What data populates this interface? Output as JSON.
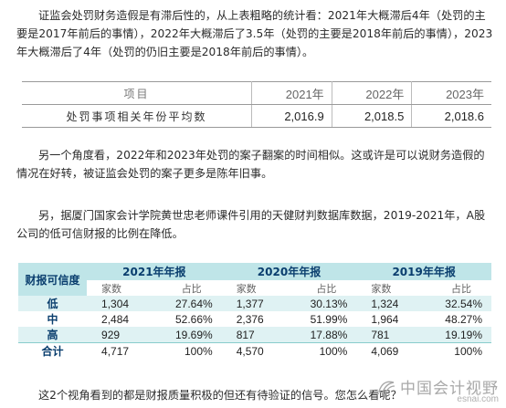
{
  "paragraphs": {
    "p1": "证监会处罚财务造假是有滞后性的，从上表粗略的统计看：2021年大概滞后4年（处罚的主要是2017年前后的事情），2022年大概滞后了3.5年（处罚的主要是2018年前后的事情），2023年大概滞后了4年（处罚的仍旧主要是2018年前后的事情）。",
    "p2": "另一个角度看，2022年和2023年处罚的案子翻案的时间相似。这或许是可以说财务造假的情况在好转，被证监会处罚的案子更多是陈年旧事。",
    "p3": "另，据厦门国家会计学院黄世忠老师课件引用的天健财判数据库数据，2019-2021年，A股公司的低可信财报的比例在降低。",
    "p4": "这2个视角看到的都是财报质量积极的但还有待验证的信号。您怎么看呢？"
  },
  "summary_table": {
    "header": {
      "item": "项目",
      "years": [
        "2021年",
        "2022年",
        "2023年"
      ]
    },
    "row": {
      "label": "处罚事项相关年份平均数",
      "values": [
        "2,016.9",
        "2,018.5",
        "2,018.6"
      ]
    }
  },
  "credit_table": {
    "corner": "财报可信度",
    "years": [
      "2021年年报",
      "2020年年报",
      "2019年年报"
    ],
    "sub": {
      "count": "家数",
      "pct": "占比"
    },
    "rows": [
      {
        "label": "低",
        "cells": [
          "1,304",
          "27.64%",
          "1,377",
          "30.13%",
          "1,324",
          "32.54%"
        ]
      },
      {
        "label": "中",
        "cells": [
          "2,484",
          "52.66%",
          "2,376",
          "51.99%",
          "1,964",
          "48.27%"
        ]
      },
      {
        "label": "高",
        "cells": [
          "929",
          "19.69%",
          "817",
          "17.88%",
          "781",
          "19.19%"
        ]
      },
      {
        "label": "合计",
        "cells": [
          "4,717",
          "100%",
          "4,570",
          "100%",
          "4,069",
          "100%"
        ]
      }
    ]
  },
  "watermark": {
    "text": "中国会计视野",
    "url": "esnai.com"
  }
}
